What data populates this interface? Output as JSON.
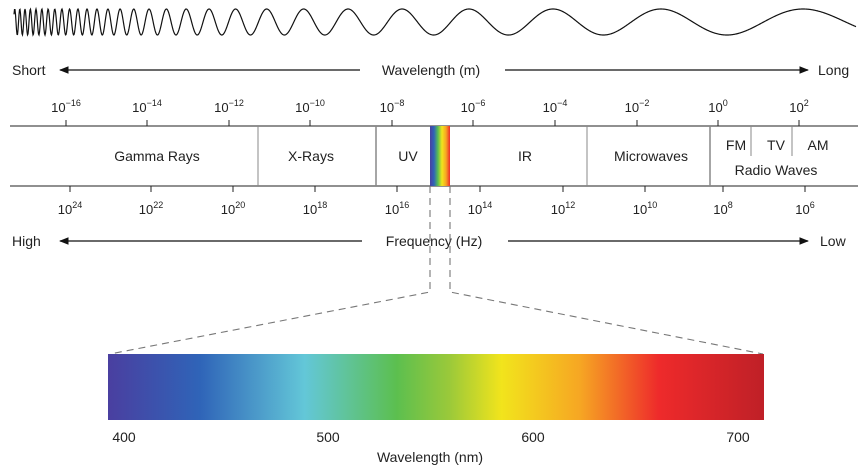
{
  "wavelength_axis": {
    "short_label": "Short",
    "title": "Wavelength (m)",
    "long_label": "Long",
    "ticks": [
      {
        "base": "10",
        "exp": "−16"
      },
      {
        "base": "10",
        "exp": "−14"
      },
      {
        "base": "10",
        "exp": "−12"
      },
      {
        "base": "10",
        "exp": "−10"
      },
      {
        "base": "10",
        "exp": "−8"
      },
      {
        "base": "10",
        "exp": "−6"
      },
      {
        "base": "10",
        "exp": "−4"
      },
      {
        "base": "10",
        "exp": "−2"
      },
      {
        "base": "10",
        "exp": "0"
      },
      {
        "base": "10",
        "exp": "2"
      }
    ]
  },
  "bands": {
    "gamma": "Gamma Rays",
    "xray": "X-Rays",
    "uv": "UV",
    "ir": "IR",
    "microwaves": "Microwaves",
    "fm": "FM",
    "tv": "TV",
    "am": "AM",
    "radio": "Radio Waves"
  },
  "frequency_axis": {
    "high_label": "High",
    "title": "Frequency (Hz)",
    "low_label": "Low",
    "ticks": [
      {
        "base": "10",
        "exp": "24"
      },
      {
        "base": "10",
        "exp": "22"
      },
      {
        "base": "10",
        "exp": "20"
      },
      {
        "base": "10",
        "exp": "18"
      },
      {
        "base": "10",
        "exp": "16"
      },
      {
        "base": "10",
        "exp": "14"
      },
      {
        "base": "10",
        "exp": "12"
      },
      {
        "base": "10",
        "exp": "10"
      },
      {
        "base": "10",
        "exp": "8"
      },
      {
        "base": "10",
        "exp": "6"
      }
    ]
  },
  "visible_spectrum": {
    "tick_labels": [
      "400",
      "500",
      "600",
      "700"
    ],
    "axis_title": "Wavelength (nm)",
    "colors": [
      "#4a3fa0",
      "#2f64b8",
      "#63c7d8",
      "#5cbf4f",
      "#9ac93a",
      "#f2e41c",
      "#f6a623",
      "#ee2a2b",
      "#bf2027"
    ]
  }
}
